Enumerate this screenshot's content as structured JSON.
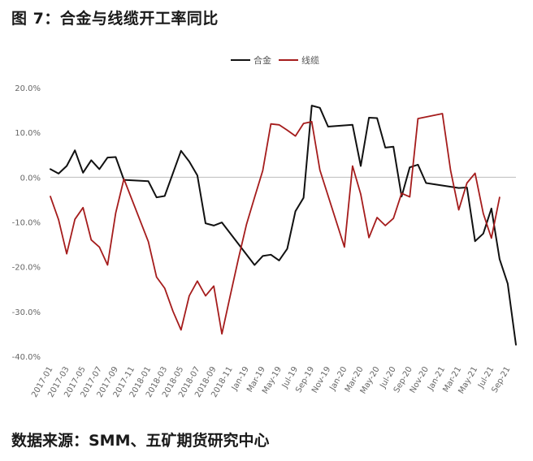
{
  "header": {
    "title": "图 7：合金与线缆开工率同比"
  },
  "footer": {
    "source": "数据来源：SMM、五矿期货研究中心"
  },
  "chart_data": {
    "type": "line",
    "title": "",
    "xlabel": "",
    "ylabel": "",
    "ylim": [
      -40,
      20
    ],
    "yticks": [
      "20.0%",
      "10.0%",
      "0.0%",
      "-10.0%",
      "-20.0%",
      "-30.0%",
      "-40.0%"
    ],
    "ytick_values": [
      20,
      10,
      0,
      -10,
      -20,
      -30,
      -40
    ],
    "grid": false,
    "legend_position": "top-center",
    "x_tick_labels": [
      "2017-01",
      "2017-03",
      "2017-05",
      "2017-07",
      "2017-09",
      "2017-11",
      "2018-01",
      "2018-03",
      "2018-05",
      "2018-07",
      "2018-09",
      "2018-11",
      "Jan-19",
      "Mar-19",
      "May-19",
      "Jul-19",
      "Sep-19",
      "Nov-19",
      "Jan-20",
      "Mar-20",
      "May-20",
      "Jul-20",
      "Sep-20",
      "Nov-20",
      "Jan-21",
      "Mar-21",
      "May-21",
      "Jul-21",
      "Sep-21"
    ],
    "series": [
      {
        "name": "合金",
        "color": "#111111",
        "points": [
          [
            0,
            1.8
          ],
          [
            1,
            0.8
          ],
          [
            2,
            2.5
          ],
          [
            3,
            6.0
          ],
          [
            4,
            1.0
          ],
          [
            5,
            3.8
          ],
          [
            6,
            1.8
          ],
          [
            7,
            4.4
          ],
          [
            8,
            4.5
          ],
          [
            9,
            -0.6
          ],
          [
            12,
            -0.9
          ],
          [
            13,
            -4.5
          ],
          [
            14,
            -4.2
          ],
          [
            16,
            5.9
          ],
          [
            17,
            3.5
          ],
          [
            18,
            0.4
          ],
          [
            19,
            -10.3
          ],
          [
            20,
            -10.8
          ],
          [
            21,
            -10.1
          ],
          [
            25,
            -19.6
          ],
          [
            26,
            -17.6
          ],
          [
            27,
            -17.3
          ],
          [
            28,
            -18.6
          ],
          [
            29,
            -16.0
          ],
          [
            30,
            -7.6
          ],
          [
            31,
            -4.6
          ],
          [
            32,
            16.0
          ],
          [
            33,
            15.5
          ],
          [
            34,
            11.3
          ],
          [
            37,
            11.7
          ],
          [
            38,
            2.5
          ],
          [
            39,
            13.3
          ],
          [
            40,
            13.2
          ],
          [
            41,
            6.6
          ],
          [
            42,
            6.8
          ],
          [
            43,
            -4.3
          ],
          [
            44,
            2.2
          ],
          [
            45,
            2.8
          ],
          [
            46,
            -1.3
          ],
          [
            50,
            -2.4
          ],
          [
            51,
            -2.3
          ],
          [
            52,
            -14.3
          ],
          [
            53,
            -12.6
          ],
          [
            54,
            -7.0
          ],
          [
            55,
            -18.3
          ],
          [
            56,
            -23.8
          ],
          [
            57,
            -37.4
          ]
        ]
      },
      {
        "name": "线缆",
        "color": "#a51c1c",
        "points": [
          [
            0,
            -4.3
          ],
          [
            1,
            -9.5
          ],
          [
            2,
            -17.1
          ],
          [
            3,
            -9.4
          ],
          [
            4,
            -6.8
          ],
          [
            5,
            -14.0
          ],
          [
            6,
            -15.6
          ],
          [
            7,
            -19.6
          ],
          [
            8,
            -8.0
          ],
          [
            9,
            -0.4
          ],
          [
            12,
            -14.4
          ],
          [
            13,
            -22.3
          ],
          [
            14,
            -24.8
          ],
          [
            15,
            -29.9
          ],
          [
            16,
            -34.1
          ],
          [
            17,
            -26.5
          ],
          [
            18,
            -23.2
          ],
          [
            19,
            -26.5
          ],
          [
            20,
            -24.3
          ],
          [
            21,
            -35.0
          ],
          [
            22,
            -26.6
          ],
          [
            23,
            -18.4
          ],
          [
            24,
            -10.6
          ],
          [
            25,
            -4.5
          ],
          [
            26,
            1.5
          ],
          [
            27,
            11.9
          ],
          [
            28,
            11.7
          ],
          [
            29,
            10.5
          ],
          [
            30,
            9.2
          ],
          [
            31,
            12.0
          ],
          [
            32,
            12.4
          ],
          [
            33,
            1.6
          ],
          [
            36,
            -15.6
          ],
          [
            37,
            2.5
          ],
          [
            38,
            -3.8
          ],
          [
            39,
            -13.5
          ],
          [
            40,
            -9.0
          ],
          [
            41,
            -10.8
          ],
          [
            42,
            -9.2
          ],
          [
            43,
            -3.6
          ],
          [
            44,
            -4.4
          ],
          [
            45,
            13.1
          ],
          [
            48,
            14.2
          ],
          [
            49,
            1.5
          ],
          [
            50,
            -7.3
          ],
          [
            51,
            -1.3
          ],
          [
            52,
            0.9
          ],
          [
            53,
            -8.1
          ],
          [
            54,
            -13.6
          ],
          [
            55,
            -4.5
          ]
        ]
      }
    ]
  }
}
